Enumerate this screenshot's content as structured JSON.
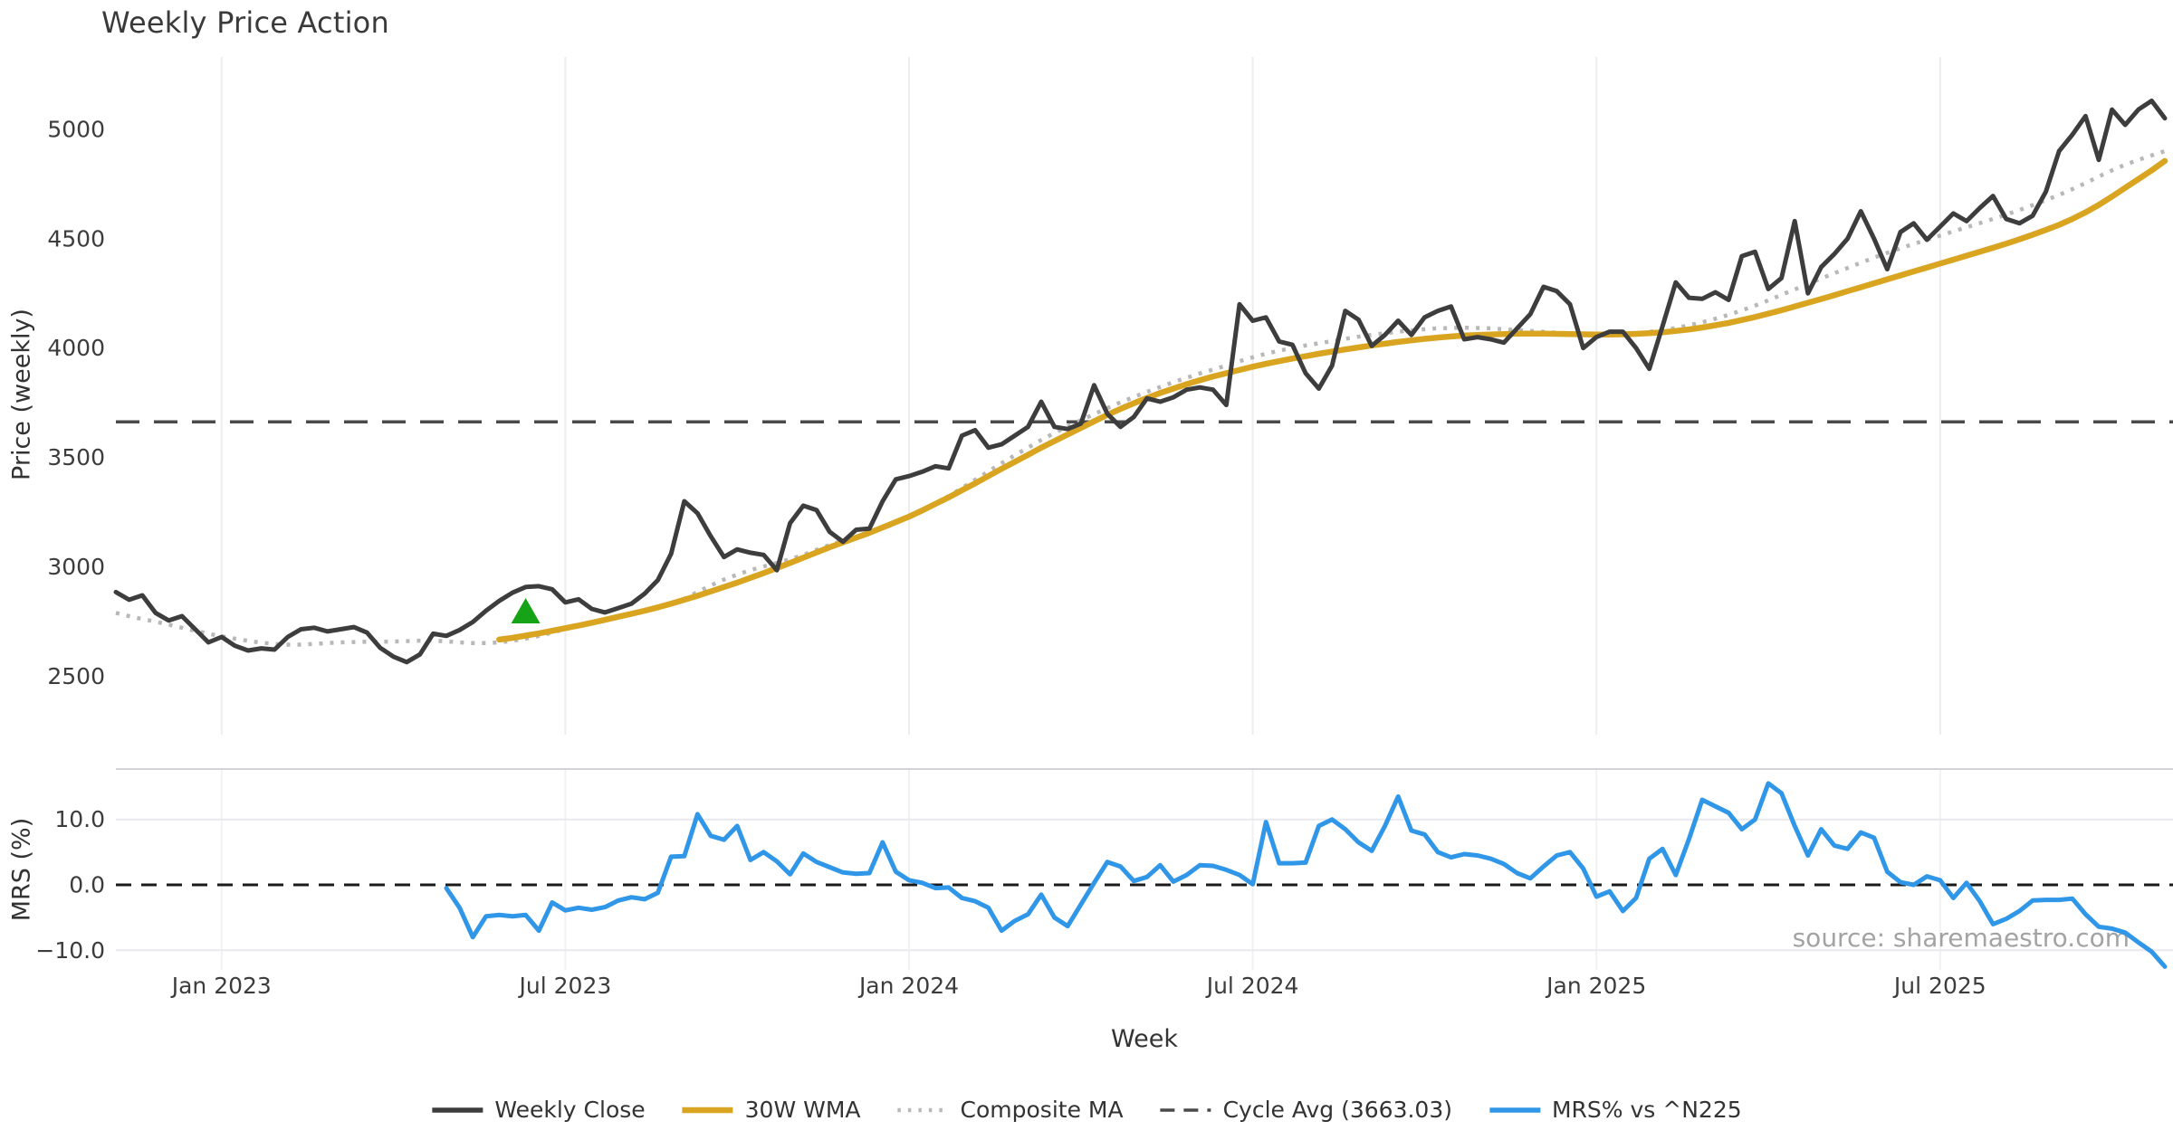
{
  "title": "Weekly Price Action",
  "source_note": "source: sharemaestro.com",
  "colors": {
    "weekly_close": "#3d3d3d",
    "wma_30w": "#d9a521",
    "composite_ma": "#b8b8b8",
    "cycle_avg": "#4a4a4a",
    "mrs": "#2f96e8",
    "signal_marker": "#17a317",
    "grid_vertical": "#ededf1",
    "grid_horizontal": "#e9e9ee",
    "panel_spine": "#d2d2d8",
    "zero_line": "#1a1a1a",
    "tick_text": "#3c3c3c",
    "source_text": "#a3a3a3"
  },
  "axes": {
    "x": {
      "label": "Week",
      "ticks": [
        {
          "label": "Jan 2023",
          "week": 8
        },
        {
          "label": "Jul 2023",
          "week": 34
        },
        {
          "label": "Jan 2024",
          "week": 60
        },
        {
          "label": "Jul 2024",
          "week": 86
        },
        {
          "label": "Jan 2025",
          "week": 112
        },
        {
          "label": "Jul 2025",
          "week": 138
        }
      ]
    },
    "price": {
      "label": "Price (weekly)",
      "ticks": [
        {
          "label": "2500",
          "value": 2500
        },
        {
          "label": "3000",
          "value": 3000
        },
        {
          "label": "3500",
          "value": 3500
        },
        {
          "label": "4000",
          "value": 4000
        },
        {
          "label": "4500",
          "value": 4500
        },
        {
          "label": "5000",
          "value": 5000
        }
      ],
      "lim": [
        2250,
        5330
      ]
    },
    "mrs": {
      "label": "MRS (%)",
      "ticks": [
        {
          "label": "10.0",
          "value": 10
        },
        {
          "label": "0.0",
          "value": 0
        },
        {
          "label": "−10.0",
          "value": -10
        }
      ],
      "lim": [
        -13,
        17.7
      ]
    }
  },
  "legend": [
    {
      "label": "Weekly Close",
      "color": "#3d3d3d",
      "dash": "",
      "width": 5.5
    },
    {
      "label": "30W WMA",
      "color": "#d9a521",
      "dash": "",
      "width": 6.5
    },
    {
      "label": "Composite MA",
      "color": "#b8b8b8",
      "dash": "3.5 8",
      "width": 4.5
    },
    {
      "label": "Cycle Avg (3663.03)",
      "color": "#4a4a4a",
      "dash": "16 10",
      "width": 3.5
    },
    {
      "label": "MRS% vs ^N225",
      "color": "#2f96e8",
      "dash": "",
      "width": 5.5
    }
  ],
  "chart_data": [
    {
      "type": "line",
      "panel": "price",
      "title": "Weekly Price Action",
      "ylabel": "Price (weekly)",
      "ylim": [
        2250,
        5330
      ],
      "x_unit": "week_index",
      "grid": "vertical-only",
      "cycle_avg": 3663.03,
      "series": [
        {
          "name": "Weekly Close",
          "color": "#3d3d3d",
          "style": "solid",
          "start_week": 0,
          "values": [
            2885,
            2850,
            2870,
            2790,
            2755,
            2775,
            2715,
            2655,
            2680,
            2640,
            2618,
            2628,
            2622,
            2680,
            2715,
            2722,
            2705,
            2715,
            2725,
            2700,
            2630,
            2590,
            2565,
            2600,
            2695,
            2685,
            2712,
            2748,
            2800,
            2845,
            2882,
            2908,
            2912,
            2898,
            2838,
            2852,
            2808,
            2792,
            2812,
            2832,
            2878,
            2940,
            3060,
            3300,
            3245,
            3140,
            3045,
            3080,
            3065,
            3055,
            2985,
            3200,
            3280,
            3260,
            3160,
            3115,
            3170,
            3175,
            3300,
            3400,
            3415,
            3435,
            3460,
            3450,
            3600,
            3625,
            3545,
            3560,
            3600,
            3640,
            3755,
            3640,
            3630,
            3655,
            3830,
            3700,
            3640,
            3685,
            3770,
            3755,
            3775,
            3810,
            3820,
            3810,
            3740,
            4200,
            4125,
            4140,
            4030,
            4015,
            3885,
            3815,
            3920,
            4170,
            4130,
            4010,
            4060,
            4125,
            4060,
            4140,
            4170,
            4190,
            4040,
            4050,
            4040,
            4025,
            4090,
            4155,
            4280,
            4260,
            4200,
            4000,
            4050,
            4075,
            4075,
            4000,
            3905,
            4100,
            4300,
            4230,
            4225,
            4255,
            4220,
            4420,
            4440,
            4270,
            4320,
            4580,
            4250,
            4370,
            4430,
            4500,
            4625,
            4500,
            4360,
            4530,
            4570,
            4495,
            4555,
            4615,
            4580,
            4640,
            4695,
            4590,
            4570,
            4605,
            4715,
            4900,
            4975,
            5060,
            4860,
            5090,
            5020,
            5090,
            5130,
            5050
          ]
        },
        {
          "name": "30W WMA",
          "color": "#d9a521",
          "style": "solid",
          "start_week": 29,
          "values": [
            2668,
            2676,
            2686,
            2696,
            2708,
            2720,
            2732,
            2745,
            2758,
            2772,
            2786,
            2800,
            2815,
            2832,
            2850,
            2868,
            2888,
            2908,
            2928,
            2950,
            2972,
            2995,
            3018,
            3042,
            3066,
            3090,
            3112,
            3134,
            3156,
            3180,
            3205,
            3230,
            3258,
            3288,
            3318,
            3350,
            3382,
            3415,
            3448,
            3480,
            3512,
            3545,
            3575,
            3605,
            3635,
            3665,
            3695,
            3722,
            3748,
            3772,
            3795,
            3815,
            3835,
            3853,
            3870,
            3885,
            3900,
            3915,
            3928,
            3940,
            3952,
            3963,
            3974,
            3984,
            3994,
            4003,
            4012,
            4020,
            4028,
            4035,
            4042,
            4048,
            4053,
            4057,
            4060,
            4062,
            4064,
            4066,
            4066,
            4066,
            4065,
            4064,
            4063,
            4062,
            4062,
            4063,
            4065,
            4068,
            4072,
            4078,
            4085,
            4094,
            4104,
            4115,
            4128,
            4142,
            4157,
            4173,
            4190,
            4207,
            4224,
            4242,
            4260,
            4278,
            4296,
            4314,
            4332,
            4350,
            4368,
            4386,
            4404,
            4422,
            4440,
            4458,
            4477,
            4497,
            4518,
            4540,
            4563,
            4590,
            4620,
            4654,
            4692,
            4732,
            4772,
            4812,
            4855
          ]
        },
        {
          "name": "Composite MA",
          "color": "#b8b8b8",
          "style": "dotted",
          "start_week": 0,
          "values": [
            2790,
            2775,
            2762,
            2750,
            2736,
            2722,
            2708,
            2695,
            2683,
            2672,
            2662,
            2654,
            2648,
            2645,
            2645,
            2648,
            2652,
            2655,
            2657,
            2658,
            2658,
            2659,
            2661,
            2663,
            2663,
            2660,
            2655,
            2652,
            2652,
            2655,
            2662,
            2672,
            2685,
            2700,
            2716,
            2732,
            2748,
            2762,
            2775,
            2786,
            2798,
            2812,
            2830,
            2855,
            2885,
            2915,
            2942,
            2965,
            2985,
            3002,
            3018,
            3035,
            3055,
            3078,
            3100,
            3120,
            3138,
            3155,
            3175,
            3200,
            3228,
            3258,
            3290,
            3324,
            3360,
            3398,
            3436,
            3474,
            3510,
            3545,
            3580,
            3612,
            3642,
            3670,
            3698,
            3726,
            3752,
            3776,
            3800,
            3822,
            3844,
            3864,
            3884,
            3902,
            3920,
            3940,
            3958,
            3974,
            3988,
            4000,
            4012,
            4022,
            4032,
            4042,
            4052,
            4060,
            4068,
            4075,
            4081,
            4086,
            4090,
            4092,
            4093,
            4092,
            4090,
            4086,
            4082,
            4078,
            4074,
            4070,
            4067,
            4064,
            4062,
            4062,
            4064,
            4068,
            4074,
            4082,
            4092,
            4104,
            4118,
            4134,
            4152,
            4172,
            4194,
            4218,
            4243,
            4268,
            4293,
            4318,
            4342,
            4366,
            4390,
            4413,
            4435,
            4456,
            4476,
            4495,
            4514,
            4533,
            4552,
            4571,
            4590,
            4610,
            4631,
            4653,
            4676,
            4700,
            4726,
            4754,
            4784,
            4812,
            4838,
            4860,
            4880,
            4900
          ]
        },
        {
          "name": "Cycle Avg",
          "color": "#4a4a4a",
          "style": "dashed",
          "constant": 3663.03
        }
      ],
      "markers": [
        {
          "shape": "triangle-up",
          "color": "#17a317",
          "week": 31,
          "value": 2800
        }
      ]
    },
    {
      "type": "line",
      "panel": "mrs",
      "ylabel": "MRS (%)",
      "ylim": [
        -13,
        17.7
      ],
      "x_unit": "week_index",
      "grid": "horizontal",
      "zero_line": 0,
      "series": [
        {
          "name": "MRS% vs ^N225",
          "color": "#2f96e8",
          "style": "solid",
          "start_week": 25,
          "values": [
            -0.5,
            -3.5,
            -8.0,
            -4.8,
            -4.6,
            -4.8,
            -4.6,
            -7.0,
            -2.7,
            -3.9,
            -3.5,
            -3.8,
            -3.4,
            -2.4,
            -1.9,
            -2.2,
            -1.2,
            4.3,
            4.4,
            10.8,
            7.5,
            6.9,
            9.0,
            3.8,
            5.0,
            3.6,
            1.6,
            4.8,
            3.5,
            2.7,
            1.9,
            1.7,
            1.8,
            6.5,
            2.0,
            0.7,
            0.3,
            -0.5,
            -0.4,
            -2.0,
            -2.5,
            -3.5,
            -7.0,
            -5.5,
            -4.5,
            -1.5,
            -5.0,
            -6.3,
            -3.0,
            0.3,
            3.5,
            2.8,
            0.6,
            1.2,
            3.0,
            0.5,
            1.5,
            3.0,
            2.9,
            2.3,
            1.5,
            0.1,
            9.6,
            3.3,
            3.3,
            3.4,
            9.0,
            10.0,
            8.5,
            6.5,
            5.2,
            9.0,
            13.5,
            8.3,
            7.7,
            5.0,
            4.2,
            4.7,
            4.5,
            4.0,
            3.2,
            1.8,
            1.0,
            2.8,
            4.5,
            5.0,
            2.5,
            -1.8,
            -1.0,
            -4.0,
            -2.0,
            4.0,
            5.5,
            1.5,
            7.0,
            13.0,
            12.0,
            11.0,
            8.5,
            10.0,
            15.5,
            14.0,
            9.0,
            4.5,
            8.5,
            6.0,
            5.5,
            8.0,
            7.2,
            2.0,
            0.4,
            0.0,
            1.3,
            0.7,
            -2.0,
            0.3,
            -2.5,
            -6.0,
            -5.2,
            -4.0,
            -2.4,
            -2.3,
            -2.3,
            -2.1,
            -4.5,
            -6.4,
            -6.7,
            -7.3,
            -8.8,
            -10.2,
            -12.5
          ]
        }
      ]
    }
  ]
}
